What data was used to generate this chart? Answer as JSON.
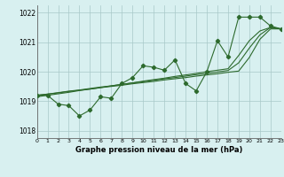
{
  "title": "Graphe pression niveau de la mer (hPa)",
  "x_values": [
    0,
    1,
    2,
    3,
    4,
    5,
    6,
    7,
    8,
    9,
    10,
    11,
    12,
    13,
    14,
    15,
    16,
    17,
    18,
    19,
    20,
    21,
    22,
    23
  ],
  "y_main": [
    1019.2,
    1019.2,
    1018.9,
    1018.85,
    1018.5,
    1018.7,
    1019.15,
    1019.1,
    1019.6,
    1019.8,
    1020.2,
    1020.15,
    1020.05,
    1020.4,
    1019.6,
    1019.35,
    1020.0,
    1021.05,
    1020.5,
    1021.85,
    1021.85,
    1021.85,
    1021.55,
    1021.45
  ],
  "y_trend1": [
    1019.2,
    1019.24,
    1019.28,
    1019.33,
    1019.37,
    1019.41,
    1019.46,
    1019.5,
    1019.54,
    1019.59,
    1019.63,
    1019.67,
    1019.72,
    1019.76,
    1019.8,
    1019.85,
    1019.89,
    1019.93,
    1019.98,
    1020.02,
    1020.48,
    1021.1,
    1021.45,
    1021.45
  ],
  "y_trend2": [
    1019.2,
    1019.24,
    1019.29,
    1019.34,
    1019.38,
    1019.43,
    1019.48,
    1019.52,
    1019.57,
    1019.62,
    1019.66,
    1019.71,
    1019.76,
    1019.8,
    1019.85,
    1019.9,
    1019.94,
    1019.99,
    1020.04,
    1020.3,
    1020.8,
    1021.25,
    1021.5,
    1021.45
  ],
  "y_trend3": [
    1019.15,
    1019.2,
    1019.25,
    1019.3,
    1019.36,
    1019.41,
    1019.46,
    1019.52,
    1019.57,
    1019.62,
    1019.68,
    1019.73,
    1019.78,
    1019.84,
    1019.89,
    1019.94,
    1020.0,
    1020.05,
    1020.1,
    1020.55,
    1021.05,
    1021.38,
    1021.5,
    1021.45
  ],
  "xlim": [
    0,
    23
  ],
  "ylim": [
    1017.75,
    1022.25
  ],
  "yticks": [
    1018,
    1019,
    1020,
    1021,
    1022
  ],
  "xticks": [
    0,
    1,
    2,
    3,
    4,
    5,
    6,
    7,
    8,
    9,
    10,
    11,
    12,
    13,
    14,
    15,
    16,
    17,
    18,
    19,
    20,
    21,
    22,
    23
  ],
  "line_color": "#2d6a2d",
  "bg_color": "#d8f0f0",
  "grid_color": "#a8c8c8",
  "marker": "D",
  "marker_size": 2.2,
  "linewidth": 0.8
}
